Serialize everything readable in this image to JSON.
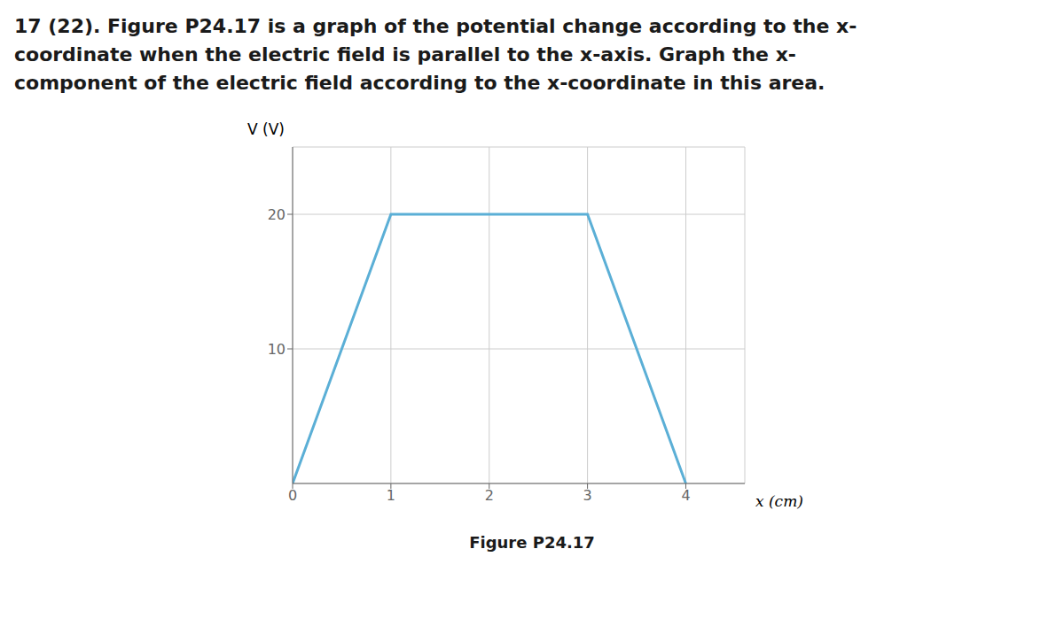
{
  "chart_data": {
    "type": "line",
    "title": "17 (22). Figure P24.17 is a graph of the potential change according to the x-\ncoordinate when the electric field is parallel to the x-axis. Graph the x-\ncomponent of the electric field according to the x-coordinate in this area.",
    "annotations": [
      "Figure P24.17"
    ],
    "xlabel": "x (cm)",
    "ylabel": "V (V)",
    "x": [
      0,
      1,
      3,
      4
    ],
    "values": [
      0,
      20,
      20,
      0
    ],
    "color": "#5BAFD6",
    "xlim": [
      0,
      4.6
    ],
    "ylim": [
      0,
      25
    ],
    "xticks": [
      0,
      1,
      2,
      3,
      4
    ],
    "yticks": [
      10,
      20
    ],
    "grid": true
  }
}
